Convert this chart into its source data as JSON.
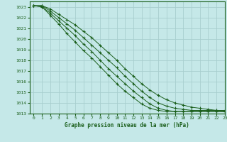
{
  "title": "Graphe pression niveau de la mer (hPa)",
  "bg_color": "#c5e8e8",
  "grid_color": "#a8cece",
  "line_color": "#1a5e1a",
  "marker_color": "#1a5e1a",
  "xlim": [
    -0.5,
    23
  ],
  "ylim": [
    1013.0,
    1023.5
  ],
  "yticks": [
    1013,
    1014,
    1015,
    1016,
    1017,
    1018,
    1019,
    1020,
    1021,
    1022,
    1023
  ],
  "xticks": [
    0,
    1,
    2,
    3,
    4,
    5,
    6,
    7,
    8,
    9,
    10,
    11,
    12,
    13,
    14,
    15,
    16,
    17,
    18,
    19,
    20,
    21,
    22,
    23
  ],
  "series": [
    [
      1023.1,
      1023.1,
      1022.8,
      1022.3,
      1021.8,
      1021.3,
      1020.7,
      1020.1,
      1019.4,
      1018.7,
      1018.0,
      1017.2,
      1016.5,
      1015.8,
      1015.2,
      1014.7,
      1014.3,
      1014.0,
      1013.8,
      1013.6,
      1013.5,
      1013.4,
      1013.3,
      1013.3
    ],
    [
      1023.1,
      1023.1,
      1022.6,
      1022.0,
      1021.4,
      1020.8,
      1020.1,
      1019.4,
      1018.7,
      1018.0,
      1017.3,
      1016.5,
      1015.8,
      1015.1,
      1014.5,
      1014.0,
      1013.7,
      1013.5,
      1013.4,
      1013.3,
      1013.3,
      1013.3,
      1013.3,
      1013.2
    ],
    [
      1023.1,
      1023.0,
      1022.4,
      1021.7,
      1021.0,
      1020.3,
      1019.5,
      1018.8,
      1018.0,
      1017.2,
      1016.5,
      1015.8,
      1015.1,
      1014.5,
      1013.9,
      1013.5,
      1013.3,
      1013.2,
      1013.2,
      1013.2,
      1013.2,
      1013.2,
      1013.2,
      1013.2
    ],
    [
      1023.1,
      1023.0,
      1022.2,
      1021.4,
      1020.5,
      1019.7,
      1018.9,
      1018.2,
      1017.4,
      1016.6,
      1015.8,
      1015.1,
      1014.5,
      1013.9,
      1013.5,
      1013.3,
      1013.2,
      1013.2,
      1013.2,
      1013.2,
      1013.2,
      1013.2,
      1013.2,
      1013.2
    ]
  ]
}
